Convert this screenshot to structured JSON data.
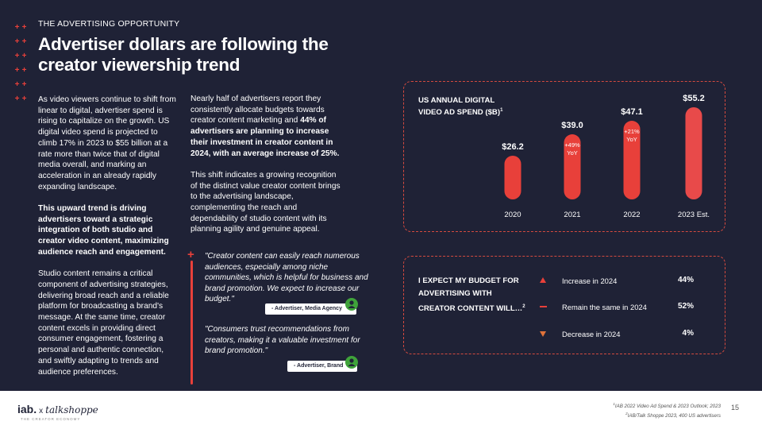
{
  "header": {
    "eyebrow": "THE ADVERTISING OPPORTUNITY",
    "title": "Advertiser dollars are following the creator viewership trend"
  },
  "column1": {
    "p1": "As video viewers continue to shift from linear to digital, advertiser spend is rising to capitalize on the growth. US digital video spend is projected to climb 17% in 2023 to $55 billion at a rate more than twice that of digital media overall, and marking an acceleration in an already rapidly expanding landscape.",
    "p2": "This upward trend is driving advertisers toward a strategic integration of both studio and creator video content, maximizing audience reach and engagement.",
    "p3": "Studio content remains a critical component of advertising strategies, delivering broad reach and a reliable platform for broadcasting a brand's message. At the same time, creator content excels in providing direct consumer engagement, fostering a personal and authentic connection, and swiftly adapting to trends and audience preferences."
  },
  "column2": {
    "p1_start": "Nearly half of advertisers report they consistently allocate budgets towards creator content marketing and ",
    "p1_bold": "44% of advertisers are planning to increase their investment in creator content in 2024, with an average increase of 25%.",
    "p2": "This shift indicates a growing recognition of the distinct value creator content brings to the advertising landscape, complementing the reach and dependability of studio content with its planning agility and genuine appeal."
  },
  "quotes": [
    {
      "text": "\"Creator content can easily reach numerous audiences, especially among niche communities, which is helpful for business and brand promotion. We expect to increase our budget.\"",
      "attribution": "- Advertiser, Media Agency"
    },
    {
      "text": "\"Consumers trust recommendations from creators, making it a valuable investment for brand promotion.\"",
      "attribution": "- Advertiser, Brand"
    }
  ],
  "chart_data": {
    "type": "bar",
    "title": "US ANNUAL DIGITAL VIDEO AD SPEND ($B)",
    "title_footnote": "1",
    "categories": [
      "2020",
      "2021",
      "2022",
      "2023 Est."
    ],
    "values": [
      26.2,
      39.0,
      47.1,
      55.2
    ],
    "value_labels": [
      "$26.2",
      "$39.0",
      "$47.1",
      "$55.2"
    ],
    "annotations": [
      {
        "category": "2021",
        "line1": "+49%",
        "line2": "YoY"
      },
      {
        "category": "2022",
        "line1": "+21%",
        "line2": "YoY"
      }
    ],
    "colors": [
      "#e8403a",
      "#e8403a",
      "#e8403a",
      "#e84a4a"
    ],
    "ylim": [
      0,
      55.2
    ],
    "grid": false,
    "xlabel": "",
    "ylabel": ""
  },
  "budget": {
    "title": "I EXPECT MY BUDGET FOR ADVERTISING WITH CREATOR CONTENT WILL…",
    "title_footnote": "2",
    "rows": [
      {
        "icon": "triangle-up-icon",
        "label": "Increase in 2024",
        "value": "44%"
      },
      {
        "icon": "dash-icon",
        "label": "Remain the same in 2024",
        "value": "52%"
      },
      {
        "icon": "triangle-down-icon",
        "label": "Decrease in 2024",
        "value": "4%"
      }
    ]
  },
  "footer": {
    "logo_iab": "iab.",
    "logo_x": "x",
    "logo_ts": "talkshoppe",
    "logo_sub": "THE CREATOR ECONOMY",
    "source1_num": "1",
    "source1": "IAB 2022 Video Ad Spend & 2023 Outlook; 2023",
    "source2_num": "2",
    "source2": "IAB/Talk Shoppe 2023, 400 US advertisers",
    "page": "15"
  },
  "theme": {
    "background": "#1f2236",
    "accent": "#e8403a",
    "green": "#3fa33a"
  }
}
